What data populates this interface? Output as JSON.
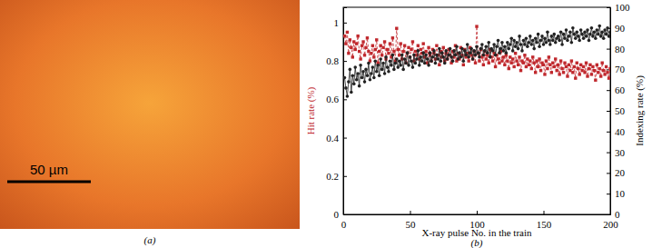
{
  "image_panel": {
    "label": "(a)",
    "scale_bar": "50 µm"
  },
  "chart_data": {
    "type": "line",
    "panel_label": "(b)",
    "xlabel": "X-ray pulse No. in the train",
    "ylabel": "Hit rate (%)",
    "y2label": "Indexing rate (%)",
    "xlim": [
      0,
      200
    ],
    "xticks": [
      0,
      50,
      100,
      150,
      200
    ],
    "ylim": [
      0,
      1.08
    ],
    "yticks": [
      0,
      0.2,
      0.4,
      0.6,
      0.8,
      1
    ],
    "y2lim": [
      0,
      100
    ],
    "y2ticks": [
      0,
      10,
      20,
      30,
      40,
      50,
      60,
      70,
      80,
      90,
      100
    ],
    "x": [
      1,
      2,
      3,
      4,
      5,
      6,
      7,
      8,
      9,
      10,
      11,
      12,
      13,
      14,
      15,
      16,
      17,
      18,
      19,
      20,
      21,
      22,
      23,
      24,
      25,
      26,
      27,
      28,
      29,
      30,
      31,
      32,
      33,
      34,
      35,
      36,
      37,
      38,
      39,
      40,
      41,
      42,
      43,
      44,
      45,
      46,
      47,
      48,
      49,
      50,
      51,
      52,
      53,
      54,
      55,
      56,
      57,
      58,
      59,
      60,
      61,
      62,
      63,
      64,
      65,
      66,
      67,
      68,
      69,
      70,
      71,
      72,
      73,
      74,
      75,
      76,
      77,
      78,
      79,
      80,
      81,
      82,
      83,
      84,
      85,
      86,
      87,
      88,
      89,
      90,
      91,
      92,
      93,
      94,
      95,
      96,
      97,
      98,
      99,
      100,
      101,
      102,
      103,
      104,
      105,
      106,
      107,
      108,
      109,
      110,
      111,
      112,
      113,
      114,
      115,
      116,
      117,
      118,
      119,
      120,
      121,
      122,
      123,
      124,
      125,
      126,
      127,
      128,
      129,
      130,
      131,
      132,
      133,
      134,
      135,
      136,
      137,
      138,
      139,
      140,
      141,
      142,
      143,
      144,
      145,
      146,
      147,
      148,
      149,
      150,
      151,
      152,
      153,
      154,
      155,
      156,
      157,
      158,
      159,
      160,
      161,
      162,
      163,
      164,
      165,
      166,
      167,
      168,
      169,
      170,
      171,
      172,
      173,
      174,
      175,
      176,
      177,
      178,
      179,
      180,
      181,
      182,
      183,
      184,
      185,
      186,
      187,
      188,
      189,
      190,
      191,
      192,
      193,
      194,
      195,
      196,
      197,
      198,
      199,
      200
    ],
    "series": [
      {
        "color": "#c0282d",
        "axis": "y",
        "marker": "square",
        "line_style": "dashed",
        "values": [
          0.93,
          0.89,
          0.95,
          0.84,
          0.91,
          0.87,
          0.82,
          0.9,
          0.86,
          0.89,
          0.93,
          0.85,
          0.81,
          0.88,
          0.9,
          0.83,
          0.87,
          0.92,
          0.85,
          0.8,
          0.84,
          0.88,
          0.82,
          0.86,
          0.91,
          0.79,
          0.85,
          0.88,
          0.83,
          0.87,
          0.9,
          0.81,
          0.86,
          0.84,
          0.89,
          0.82,
          0.92,
          0.85,
          0.8,
          0.97,
          0.86,
          0.83,
          0.89,
          0.81,
          0.85,
          0.88,
          0.79,
          0.84,
          0.87,
          0.82,
          0.86,
          0.9,
          0.8,
          0.85,
          0.83,
          0.88,
          0.81,
          0.86,
          0.84,
          0.89,
          0.82,
          0.85,
          0.79,
          0.87,
          0.83,
          0.8,
          0.86,
          0.84,
          0.81,
          0.88,
          0.83,
          0.78,
          0.85,
          0.82,
          0.87,
          0.8,
          0.84,
          0.81,
          0.86,
          0.83,
          0.79,
          0.85,
          0.82,
          0.88,
          0.8,
          0.84,
          0.81,
          0.87,
          0.83,
          0.78,
          0.86,
          0.82,
          0.84,
          0.8,
          0.87,
          0.83,
          0.81,
          0.85,
          0.79,
          0.98,
          0.84,
          0.8,
          0.86,
          0.82,
          0.78,
          0.85,
          0.81,
          0.83,
          0.79,
          0.86,
          0.82,
          0.8,
          0.84,
          0.77,
          0.83,
          0.81,
          0.79,
          0.85,
          0.8,
          0.82,
          0.78,
          0.83,
          0.8,
          0.76,
          0.82,
          0.79,
          0.81,
          0.77,
          0.84,
          0.8,
          0.78,
          0.82,
          0.75,
          0.8,
          0.79,
          0.83,
          0.77,
          0.81,
          0.78,
          0.8,
          0.76,
          0.82,
          0.79,
          0.74,
          0.8,
          0.77,
          0.81,
          0.75,
          0.79,
          0.78,
          0.73,
          0.8,
          0.76,
          0.82,
          0.78,
          0.74,
          0.79,
          0.77,
          0.81,
          0.75,
          0.78,
          0.73,
          0.8,
          0.76,
          0.74,
          0.79,
          0.77,
          0.72,
          0.78,
          0.75,
          0.8,
          0.74,
          0.77,
          0.71,
          0.79,
          0.76,
          0.73,
          0.78,
          0.75,
          0.77,
          0.74,
          0.79,
          0.72,
          0.76,
          0.78,
          0.73,
          0.77,
          0.75,
          0.7,
          0.78,
          0.74,
          0.76,
          0.72,
          0.79,
          0.75,
          0.73,
          0.77,
          0.74,
          0.71,
          0.76
        ]
      },
      {
        "color": "#222222",
        "axis": "y2",
        "marker": "circle",
        "line_style": "solid",
        "values": [
          66,
          61,
          57,
          64,
          70,
          59,
          67,
          63,
          71,
          65,
          68,
          62,
          72,
          66,
          69,
          64,
          70,
          67,
          73,
          65,
          68,
          71,
          66,
          74,
          69,
          72,
          67,
          75,
          70,
          73,
          68,
          76,
          71,
          69,
          74,
          72,
          77,
          70,
          73,
          75,
          71,
          74,
          72,
          77,
          70,
          75,
          73,
          78,
          72,
          76,
          74,
          71,
          77,
          73,
          75,
          79,
          72,
          76,
          74,
          78,
          73,
          77,
          75,
          72,
          78,
          74,
          76,
          79,
          73,
          77,
          75,
          80,
          74,
          78,
          76,
          73,
          79,
          75,
          77,
          80,
          76,
          74,
          79,
          77,
          81,
          75,
          78,
          76,
          80,
          74,
          79,
          77,
          82,
          76,
          78,
          80,
          75,
          79,
          77,
          81,
          78,
          76,
          80,
          82,
          77,
          79,
          81,
          78,
          83,
          76,
          80,
          79,
          82,
          77,
          81,
          84,
          78,
          80,
          83,
          79,
          81,
          78,
          83,
          80,
          82,
          85,
          79,
          84,
          81,
          83,
          80,
          86,
          82,
          79,
          84,
          82,
          85,
          81,
          83,
          86,
          82,
          84,
          80,
          85,
          83,
          87,
          81,
          84,
          86,
          82,
          85,
          83,
          88,
          84,
          82,
          86,
          84,
          87,
          83,
          85,
          86,
          84,
          88,
          82,
          87,
          85,
          89,
          84,
          86,
          88,
          83,
          90,
          87,
          85,
          88,
          86,
          84,
          89,
          87,
          85,
          88,
          86,
          89,
          84,
          87,
          90,
          86,
          88,
          85,
          89,
          87,
          91,
          86,
          88,
          85,
          89,
          87,
          90,
          86,
          88
        ]
      }
    ]
  }
}
